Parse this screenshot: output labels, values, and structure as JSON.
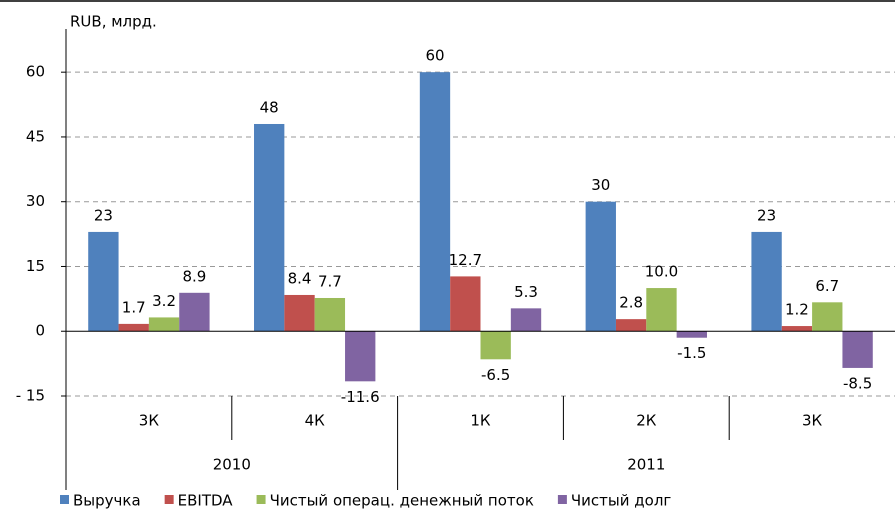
{
  "chart_data": {
    "type": "bar",
    "axis_label": "RUB, млрд.",
    "categories": [
      "3К",
      "4К",
      "1К",
      "2К",
      "3К"
    ],
    "category_groups": [
      "2010",
      "2010",
      "2011",
      "2011",
      "2011"
    ],
    "series": [
      {
        "name": "Выручка",
        "color": "#4f81bd",
        "values": [
          23,
          48,
          60,
          30,
          23
        ],
        "value_labels": [
          "23",
          "48",
          "60",
          "30",
          "23"
        ]
      },
      {
        "name": "EBITDA",
        "color": "#c0504d",
        "values": [
          1.7,
          8.4,
          12.7,
          2.8,
          1.2
        ],
        "value_labels": [
          "1.7",
          "8.4",
          "12.7",
          "2.8",
          "1.2"
        ]
      },
      {
        "name": "Чистый операц. денежный поток",
        "color": "#9bbb59",
        "values": [
          3.2,
          7.7,
          -6.5,
          10.0,
          6.7
        ],
        "value_labels": [
          "3.2",
          "7.7",
          "-6.5",
          "10.0",
          "6.7"
        ]
      },
      {
        "name": "Чистый долг",
        "color": "#8064a2",
        "values": [
          8.9,
          -11.6,
          5.3,
          -1.5,
          -8.5
        ],
        "value_labels": [
          "8.9",
          "-11.6",
          "5.3",
          "-1.5",
          "-8.5"
        ]
      }
    ],
    "ylim": [
      -15,
      70
    ],
    "yticks": [
      {
        "value": -15,
        "label": "- 15"
      },
      0,
      15,
      30,
      45,
      60
    ],
    "grid": true,
    "legend": "bottom"
  }
}
